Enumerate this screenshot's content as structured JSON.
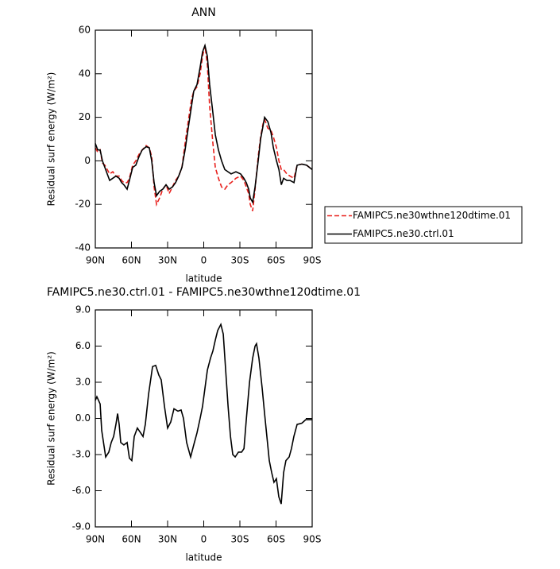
{
  "chart_data": [
    {
      "type": "line",
      "title": "ANN",
      "xlabel": "latitude",
      "ylabel": "Residual surf energy (W/m²)",
      "x": [
        90,
        88.0,
        86.0,
        84.1,
        82.1,
        80.1,
        78.1,
        75.5,
        72.9,
        70.2,
        68.2,
        66.3,
        63.6,
        61.7,
        59.0,
        56.4,
        53.7,
        51.1,
        47.8,
        45.2,
        43.2,
        41.2,
        39.2,
        36.6,
        34.0,
        31.3,
        28.7,
        26.0,
        23.4,
        20.8,
        18.1,
        15.5,
        12.9,
        10.2,
        8.3,
        5.6,
        3.0,
        1.0,
        -1.0,
        -3.0,
        -4.9,
        -7.6,
        -9.6,
        -12.2,
        -14.8,
        -17.5,
        -20.1,
        -22.7,
        -26.7,
        -30.6,
        -33.3,
        -35.3,
        -37.3,
        -38.6,
        -40.6,
        -42.6,
        -45.2,
        -47.2,
        -49.2,
        -50.5,
        -53.2,
        -55.8,
        -57.8,
        -60.4,
        -62.4,
        -64.4,
        -66.3,
        -69.0,
        -71.6,
        -74.9,
        -77.5,
        -81.4,
        -85.4,
        -90
      ],
      "series": [
        {
          "name": "FAMIPC5.ne30wthne120dtime.01",
          "color": "#e8201c",
          "style": "dashed",
          "values": [
            6,
            4,
            5,
            -1,
            -2,
            -4,
            -6,
            -5,
            -7,
            -7,
            -9,
            -10,
            -10,
            -8,
            -2,
            0,
            3,
            5,
            7,
            6,
            2,
            -12,
            -20,
            -17,
            -13,
            -11,
            -15,
            -12,
            -9,
            -7,
            -3,
            8,
            18,
            28,
            32,
            34,
            40,
            48,
            53,
            44,
            25,
            8,
            -3,
            -8,
            -12,
            -13,
            -11,
            -10,
            -8,
            -7,
            -9,
            -12,
            -15,
            -20,
            -23,
            -13,
            2,
            11,
            17,
            19,
            15,
            14,
            11,
            6,
            0,
            -4,
            -4,
            -6,
            -7,
            -8,
            -2,
            -1.5,
            -2,
            -4
          ]
        },
        {
          "name": "FAMIPC5.ne30.ctrl.01",
          "color": "#000000",
          "style": "solid",
          "values": [
            8,
            5,
            5,
            0,
            -3,
            -6,
            -9,
            -8,
            -7,
            -8,
            -10,
            -11,
            -13,
            -9,
            -3,
            -2,
            2,
            5,
            6.5,
            6,
            0,
            -10,
            -16,
            -14,
            -13,
            -11,
            -13,
            -12,
            -10,
            -7,
            -3,
            5,
            15,
            25,
            32,
            35,
            43,
            50,
            53,
            48,
            35,
            22,
            12,
            5,
            0,
            -4,
            -5,
            -6,
            -5,
            -6,
            -8,
            -10,
            -13,
            -17,
            -19,
            -12,
            0,
            10,
            16,
            20,
            18,
            13,
            6,
            0,
            -4,
            -11,
            -8,
            -9,
            -9,
            -10,
            -2,
            -1.5,
            -2,
            -4
          ]
        }
      ],
      "xlim": [
        90,
        -90
      ],
      "xticks": [
        {
          "value": 90,
          "label": "90N"
        },
        {
          "value": 60,
          "label": "60N"
        },
        {
          "value": 30,
          "label": "30N"
        },
        0,
        {
          "value": -30,
          "label": "30S"
        },
        {
          "value": -60,
          "label": "60S"
        },
        {
          "value": -90,
          "label": "90S"
        }
      ],
      "ylim": [
        -40,
        60
      ],
      "yticks": [
        -40,
        -20,
        0,
        20,
        40,
        60
      ],
      "legend": "right"
    },
    {
      "type": "line",
      "title": "FAMIPC5.ne30.ctrl.01 - FAMIPC5.ne30wthne120dtime.01",
      "xlabel": "latitude",
      "ylabel": "Residual surf energy (W/m²)",
      "x": [
        90,
        88.7,
        86,
        84.7,
        81.4,
        78.8,
        76.8,
        74.8,
        72.9,
        71.5,
        70.2,
        68.9,
        66.3,
        63.6,
        61.7,
        59.7,
        57.7,
        55.1,
        52.4,
        50.4,
        48.5,
        45.8,
        42.5,
        39.9,
        37.3,
        35.3,
        32.6,
        30,
        27.4,
        24.7,
        21.4,
        18.8,
        16.8,
        14.2,
        10.9,
        8.3,
        5.6,
        3,
        1,
        -1,
        -3,
        -5.6,
        -7.6,
        -9.6,
        -11.6,
        -14.2,
        -16.2,
        -18.2,
        -20.2,
        -22.2,
        -24.1,
        -26.1,
        -28.8,
        -31.4,
        -33.4,
        -35.4,
        -38,
        -40.6,
        -42.6,
        -43.8,
        -45.8,
        -48.5,
        -50.4,
        -52.4,
        -54.4,
        -56.4,
        -58.3,
        -60.3,
        -62.3,
        -64.3,
        -66.3,
        -68.2,
        -70.9,
        -72.8,
        -74.8,
        -77.5,
        -81.4,
        -84.7,
        -90
      ],
      "series": [
        {
          "color": "#000000",
          "style": "solid",
          "values": [
            1.5,
            1.8,
            1.2,
            -1,
            -3.2,
            -2.8,
            -2,
            -1.5,
            -0.5,
            0.4,
            -0.5,
            -2,
            -2.2,
            -2,
            -3.3,
            -3.5,
            -1.5,
            -0.8,
            -1.2,
            -1.5,
            -0.5,
            2,
            4.3,
            4.4,
            3.6,
            3.2,
            1,
            -0.8,
            -0.3,
            0.8,
            0.6,
            0.7,
            0,
            -2,
            -3.2,
            -2.2,
            -1.2,
            0,
            1,
            2.5,
            4,
            5,
            5.6,
            6.5,
            7.3,
            7.8,
            7,
            4,
            1,
            -1.5,
            -3,
            -3.2,
            -2.8,
            -2.8,
            -2.5,
            0,
            3,
            5,
            6,
            6.2,
            5,
            2.5,
            0.5,
            -1.5,
            -3.5,
            -4.5,
            -5.3,
            -5,
            -6.5,
            -7.1,
            -4.5,
            -3.5,
            -3.2,
            -2.5,
            -1.5,
            -0.5,
            -0.4,
            -0.1,
            -0.1
          ]
        }
      ],
      "xlim": [
        90,
        -90
      ],
      "xticks": [
        {
          "value": 90,
          "label": "90N"
        },
        {
          "value": 60,
          "label": "60N"
        },
        {
          "value": 30,
          "label": "30N"
        },
        0,
        {
          "value": -30,
          "label": "30S"
        },
        {
          "value": -60,
          "label": "60S"
        },
        {
          "value": -90,
          "label": "90S"
        }
      ],
      "ylim": [
        -9,
        9
      ],
      "yticks": [
        {
          "value": -9,
          "label": "-9.0"
        },
        {
          "value": -6,
          "label": "-6.0"
        },
        {
          "value": -3,
          "label": "-3.0"
        },
        {
          "value": 0,
          "label": "0.0"
        },
        {
          "value": 3,
          "label": "3.0"
        },
        {
          "value": 6,
          "label": "6.0"
        },
        {
          "value": 9,
          "label": "9.0"
        }
      ]
    }
  ]
}
